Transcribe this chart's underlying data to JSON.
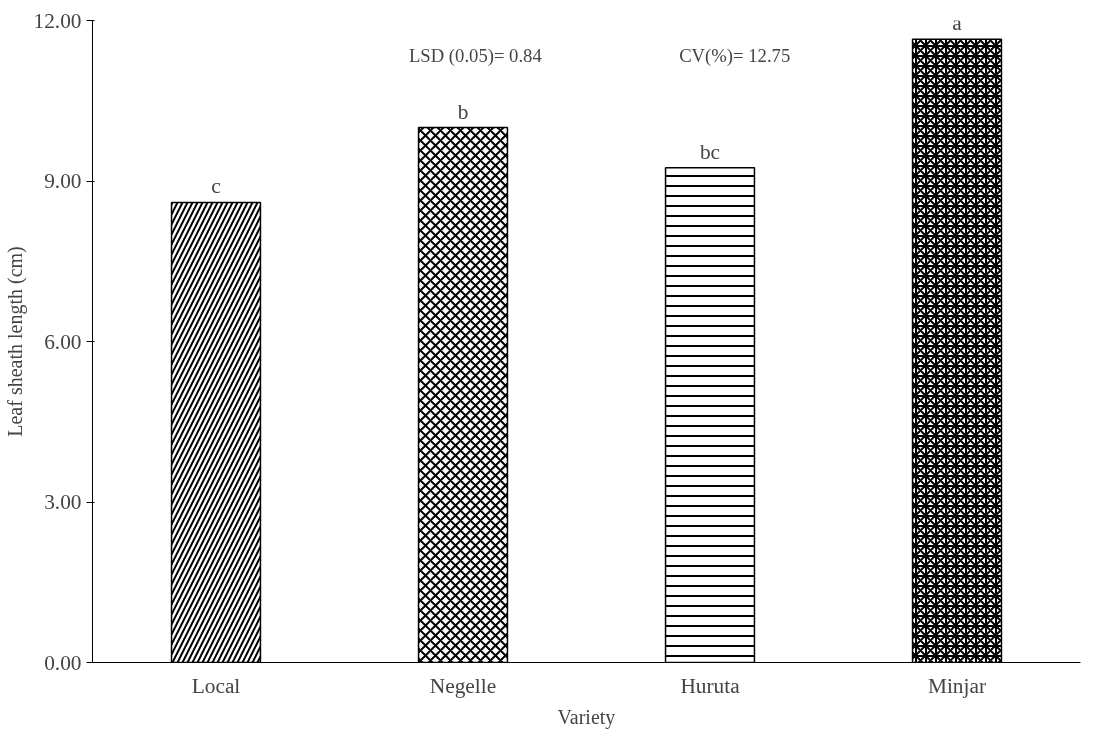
{
  "chart_data": {
    "type": "bar",
    "xlabel": "Variety",
    "ylabel": "Leaf sheath length (cm)",
    "categories": [
      "Local",
      "Negelle",
      "Huruta",
      "Minjar"
    ],
    "values": [
      8.6,
      10.0,
      9.25,
      11.65
    ],
    "colors": [
      "#000000",
      "#000000",
      "#000000",
      "#000000"
    ],
    "ylim": [
      0,
      12
    ],
    "yticks": [
      {
        "value": 0,
        "label": "0.00"
      },
      {
        "value": 3,
        "label": "3.00"
      },
      {
        "value": 6,
        "label": "6.00"
      },
      {
        "value": 9,
        "label": "9.00"
      },
      {
        "value": 12,
        "label": "12.00"
      }
    ],
    "grid": false,
    "annotations": [
      {
        "text": "c",
        "x": "Local",
        "y": 8.6
      },
      {
        "text": "b",
        "x": "Negelle",
        "y": 10.0
      },
      {
        "text": "bc",
        "x": "Huruta",
        "y": 9.25
      },
      {
        "text": "a",
        "x": "Minjar",
        "y": 11.65
      },
      "LSD (0.05)= 0.84",
      "CV(%)= 12.75"
    ]
  }
}
